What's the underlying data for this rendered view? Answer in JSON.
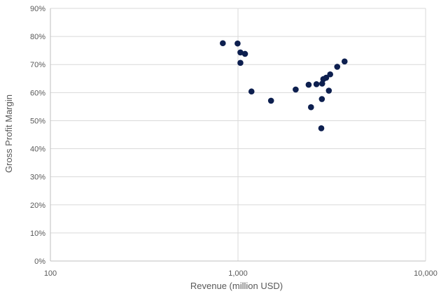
{
  "chart_data": {
    "type": "scatter",
    "title": "",
    "xlabel": "Revenue (million USD)",
    "ylabel": "Gross Profit Margin",
    "x_scale": "log",
    "xlim": [
      100,
      10000
    ],
    "ylim": [
      0,
      0.9
    ],
    "x_ticks": [
      100,
      1000,
      10000
    ],
    "x_tick_labels": [
      "100",
      "1,000",
      "10,000"
    ],
    "y_ticks": [
      0,
      0.1,
      0.2,
      0.3,
      0.4,
      0.5,
      0.6,
      0.7,
      0.8,
      0.9
    ],
    "y_tick_labels": [
      "0%",
      "10%",
      "20%",
      "30%",
      "40%",
      "50%",
      "60%",
      "70%",
      "80%",
      "90%"
    ],
    "grid": {
      "horizontal": true,
      "vertical": true,
      "minor_x": false
    },
    "legend": "none",
    "marker_color": "#0d1f4f",
    "gridline_color": "#d9d9d9",
    "axis_color": "#bfbfbf",
    "series": [
      {
        "points": [
          {
            "x": 830,
            "y": 0.776
          },
          {
            "x": 995,
            "y": 0.775
          },
          {
            "x": 1030,
            "y": 0.743
          },
          {
            "x": 1090,
            "y": 0.738
          },
          {
            "x": 1030,
            "y": 0.706
          },
          {
            "x": 1180,
            "y": 0.604
          },
          {
            "x": 1500,
            "y": 0.571
          },
          {
            "x": 2030,
            "y": 0.611
          },
          {
            "x": 2380,
            "y": 0.628
          },
          {
            "x": 2450,
            "y": 0.548
          },
          {
            "x": 2620,
            "y": 0.63
          },
          {
            "x": 2780,
            "y": 0.473
          },
          {
            "x": 2800,
            "y": 0.577
          },
          {
            "x": 2810,
            "y": 0.632
          },
          {
            "x": 2850,
            "y": 0.648
          },
          {
            "x": 2950,
            "y": 0.653
          },
          {
            "x": 3050,
            "y": 0.607
          },
          {
            "x": 3100,
            "y": 0.665
          },
          {
            "x": 3380,
            "y": 0.692
          },
          {
            "x": 3700,
            "y": 0.711
          }
        ]
      }
    ]
  }
}
